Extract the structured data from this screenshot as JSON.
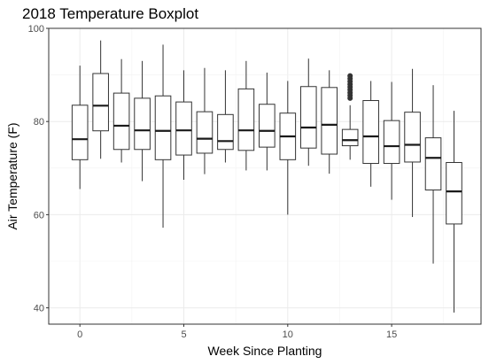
{
  "chart_data": {
    "type": "boxplot",
    "title": "2018 Temperature Boxplot",
    "xlabel": "Week Since Planting",
    "ylabel": "Air Temperature (F)",
    "xlim": [
      -1.5,
      19.3
    ],
    "ylim": [
      36.5,
      100
    ],
    "x_ticks": [
      0,
      5,
      10,
      15
    ],
    "y_ticks": [
      40,
      60,
      80,
      100
    ],
    "grid": true,
    "boxes": [
      {
        "x": 0,
        "min": 65.5,
        "q1": 71.8,
        "median": 76.2,
        "q3": 83.5,
        "max": 92.0
      },
      {
        "x": 1,
        "min": 72.0,
        "q1": 78.0,
        "median": 83.4,
        "q3": 90.3,
        "max": 97.4
      },
      {
        "x": 2,
        "min": 71.2,
        "q1": 74.0,
        "median": 79.1,
        "q3": 86.1,
        "max": 93.4
      },
      {
        "x": 3,
        "min": 67.2,
        "q1": 74.0,
        "median": 78.1,
        "q3": 85.0,
        "max": 93.0
      },
      {
        "x": 4,
        "min": 57.2,
        "q1": 71.8,
        "median": 78.0,
        "q3": 85.5,
        "max": 96.5
      },
      {
        "x": 5,
        "min": 67.5,
        "q1": 72.8,
        "median": 78.1,
        "q3": 84.2,
        "max": 91.0
      },
      {
        "x": 6,
        "min": 68.7,
        "q1": 73.2,
        "median": 76.3,
        "q3": 82.1,
        "max": 91.5
      },
      {
        "x": 7,
        "min": 71.2,
        "q1": 74.0,
        "median": 75.8,
        "q3": 81.5,
        "max": 91.0
      },
      {
        "x": 8,
        "min": 69.5,
        "q1": 73.8,
        "median": 78.1,
        "q3": 87.0,
        "max": 93.0
      },
      {
        "x": 9,
        "min": 69.5,
        "q1": 74.5,
        "median": 78.0,
        "q3": 83.7,
        "max": 90.5
      },
      {
        "x": 10,
        "min": 60.0,
        "q1": 71.8,
        "median": 76.8,
        "q3": 81.8,
        "max": 88.7
      },
      {
        "x": 11,
        "min": 70.5,
        "q1": 74.3,
        "median": 78.7,
        "q3": 87.5,
        "max": 93.5
      },
      {
        "x": 12,
        "min": 68.8,
        "q1": 73.0,
        "median": 79.3,
        "q3": 87.3,
        "max": 91.0
      },
      {
        "x": 13,
        "min": 71.8,
        "q1": 74.8,
        "median": 76.0,
        "q3": 78.3,
        "max": 83.5,
        "outliers": [
          85.0,
          85.6,
          86.2,
          86.8,
          87.4,
          88.0,
          88.6,
          89.2,
          89.8
        ]
      },
      {
        "x": 14,
        "min": 66.0,
        "q1": 71.0,
        "median": 76.8,
        "q3": 84.5,
        "max": 88.7
      },
      {
        "x": 15,
        "min": 63.2,
        "q1": 71.0,
        "median": 74.7,
        "q3": 80.2,
        "max": 88.5
      },
      {
        "x": 16,
        "min": 59.5,
        "q1": 71.3,
        "median": 75.0,
        "q3": 82.0,
        "max": 91.3
      },
      {
        "x": 17,
        "min": 49.5,
        "q1": 65.3,
        "median": 72.2,
        "q3": 76.5,
        "max": 87.8
      },
      {
        "x": 18,
        "min": 39.0,
        "q1": 58.0,
        "median": 65.0,
        "q3": 71.2,
        "max": 82.3
      }
    ]
  }
}
